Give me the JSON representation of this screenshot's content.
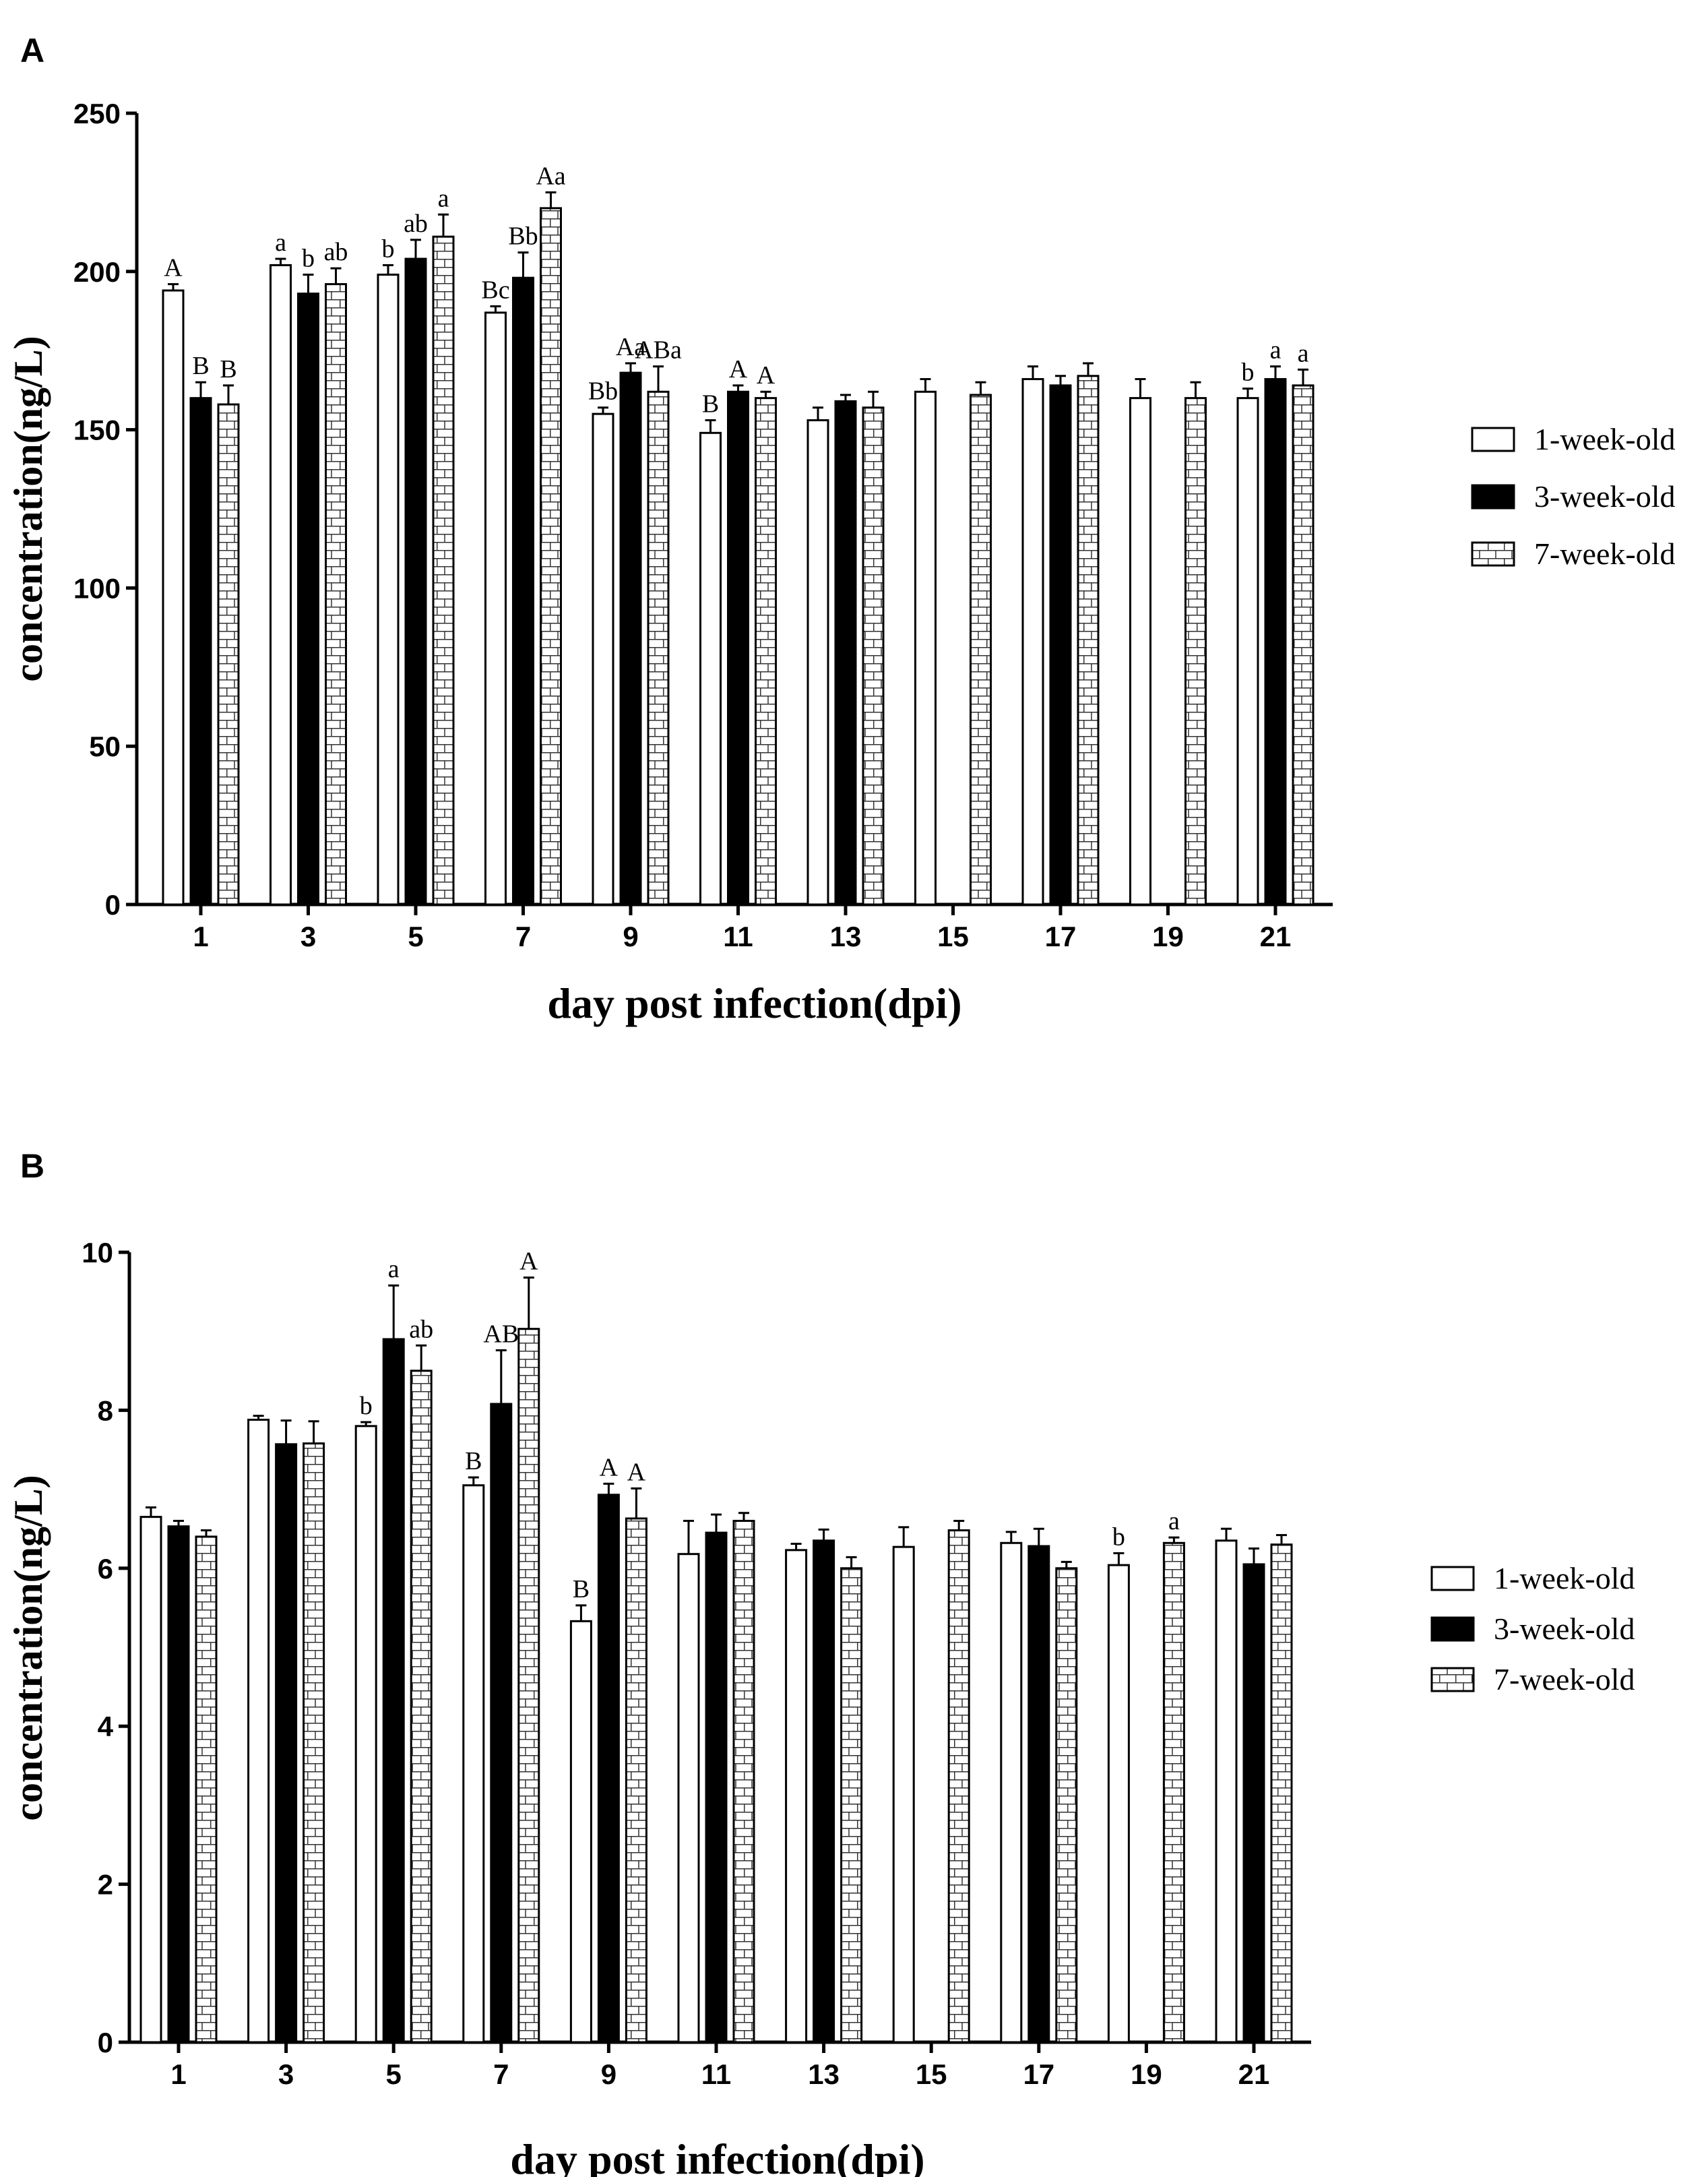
{
  "legend_title_hidden": "",
  "chart_data": [
    {
      "type": "bar",
      "panel_label": "A",
      "xlabel": "day post infection(dpi)",
      "ylabel": "concentration(ng/L)",
      "ylim": [
        0,
        250
      ],
      "yticks": [
        0,
        50,
        100,
        150,
        200,
        250
      ],
      "categories": [
        "1",
        "3",
        "5",
        "7",
        "9",
        "11",
        "13",
        "15",
        "17",
        "19",
        "21"
      ],
      "legend_position": "right",
      "series": [
        {
          "name": "1-week-old",
          "pattern": "white",
          "values": [
            194,
            202,
            199,
            187,
            155,
            149,
            153,
            162,
            166,
            160,
            160
          ],
          "errors": [
            2,
            2,
            3,
            2,
            2,
            4,
            4,
            4,
            4,
            6,
            3
          ],
          "labels": [
            "A",
            "a",
            "b",
            "Bc",
            "Bb",
            "B",
            "",
            "",
            "",
            "",
            "b"
          ]
        },
        {
          "name": "3-week-old",
          "pattern": "black",
          "values": [
            160,
            193,
            204,
            198,
            168,
            162,
            159,
            null,
            164,
            null,
            166
          ],
          "errors": [
            5,
            6,
            6,
            8,
            3,
            2,
            2,
            null,
            3,
            null,
            4
          ],
          "labels": [
            "B",
            "b",
            "ab",
            "Bb",
            "Aa",
            "A",
            "",
            "",
            "",
            "",
            "a"
          ]
        },
        {
          "name": "7-week-old",
          "pattern": "brick",
          "values": [
            158,
            196,
            211,
            220,
            162,
            160,
            157,
            161,
            167,
            160,
            164
          ],
          "errors": [
            6,
            5,
            7,
            5,
            8,
            2,
            5,
            4,
            4,
            5,
            5
          ],
          "labels": [
            "B",
            "ab",
            "a",
            "Aa",
            "ABa",
            "A",
            "",
            "",
            "",
            "",
            "a"
          ]
        }
      ]
    },
    {
      "type": "bar",
      "panel_label": "B",
      "xlabel": "day post infection(dpi)",
      "ylabel": "concentration(ng/L)",
      "ylim": [
        0,
        10
      ],
      "yticks": [
        0,
        2,
        4,
        6,
        8,
        10
      ],
      "categories": [
        "1",
        "3",
        "5",
        "7",
        "9",
        "11",
        "13",
        "15",
        "17",
        "19",
        "21"
      ],
      "legend_position": "right",
      "series": [
        {
          "name": "1-week-old",
          "pattern": "white",
          "values": [
            6.65,
            7.88,
            7.8,
            7.05,
            5.33,
            6.18,
            6.23,
            6.27,
            6.32,
            6.04,
            6.35
          ],
          "errors": [
            0.12,
            0.05,
            0.05,
            0.1,
            0.2,
            0.42,
            0.08,
            0.25,
            0.14,
            0.15,
            0.15
          ],
          "labels": [
            "",
            "",
            "b",
            "B",
            "B",
            "",
            "",
            "",
            "",
            "b",
            ""
          ]
        },
        {
          "name": "3-week-old",
          "pattern": "black",
          "values": [
            6.53,
            7.57,
            8.9,
            8.08,
            6.93,
            6.45,
            6.35,
            null,
            6.28,
            null,
            6.05
          ],
          "errors": [
            0.07,
            0.3,
            0.68,
            0.68,
            0.14,
            0.23,
            0.14,
            null,
            0.22,
            null,
            0.2
          ],
          "labels": [
            "",
            "",
            "a",
            "AB",
            "A",
            "",
            "",
            "",
            "",
            "",
            ""
          ]
        },
        {
          "name": "7-week-old",
          "pattern": "brick",
          "values": [
            6.4,
            7.58,
            8.5,
            9.03,
            6.63,
            6.6,
            6.0,
            6.48,
            6.0,
            6.32,
            6.3
          ],
          "errors": [
            0.08,
            0.28,
            0.32,
            0.65,
            0.38,
            0.1,
            0.14,
            0.12,
            0.08,
            0.07,
            0.12
          ],
          "labels": [
            "",
            "",
            "ab",
            "A",
            "A",
            "",
            "",
            "",
            "",
            "a",
            ""
          ]
        }
      ]
    }
  ]
}
